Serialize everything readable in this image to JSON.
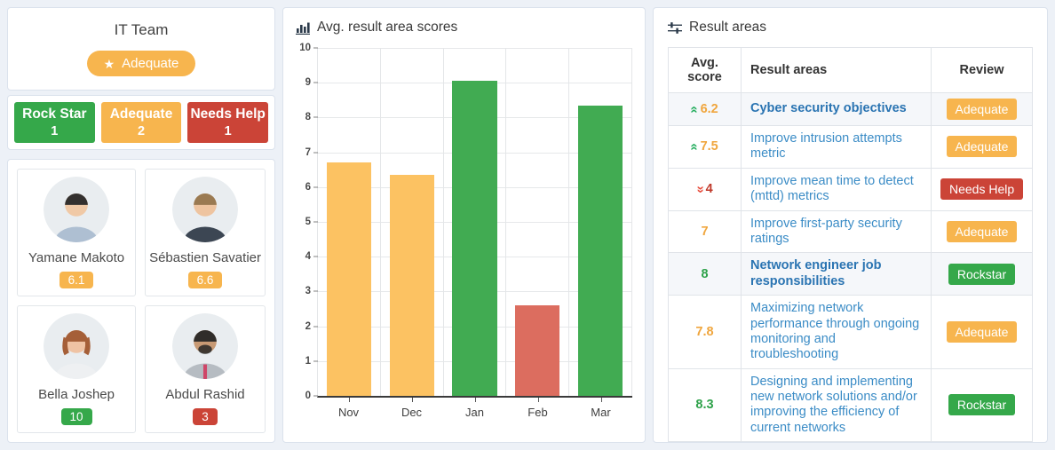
{
  "palette": {
    "orange": "#f7b54e",
    "green": "#35a84a",
    "red": "#cb4437",
    "score_orange": "#f0a63e",
    "score_green": "#2ea24a",
    "score_red": "#bf3a2b",
    "trend_up": "#27ae60",
    "trend_down": "#e74c3c",
    "link_blue": "#3b8cc6",
    "link_blue_bold": "#2a74b2"
  },
  "team_panel": {
    "title": "IT Team",
    "overall_badge": {
      "label": "Adequate",
      "icon": "star-icon",
      "color": "orange"
    },
    "summary_boxes": [
      {
        "label": "Rock Star",
        "count": "1",
        "color": "green"
      },
      {
        "label": "Adequate",
        "count": "2",
        "color": "orange"
      },
      {
        "label": "Needs Help",
        "count": "1",
        "color": "red"
      }
    ],
    "members": [
      {
        "name": "Yamane Makoto",
        "score": "6.1",
        "color": "orange",
        "avatar": "avatar-photo"
      },
      {
        "name": "Sébastien Savatier",
        "score": "6.6",
        "color": "orange",
        "avatar": "avatar-photo"
      },
      {
        "name": "Bella Joshep",
        "score": "10",
        "color": "green",
        "avatar": "avatar-photo"
      },
      {
        "name": "Abdul Rashid",
        "score": "3",
        "color": "red",
        "avatar": "avatar-photo"
      }
    ]
  },
  "chart_panel": {
    "title": "Avg. result area scores",
    "icon": "bar-chart-icon"
  },
  "chart_data": {
    "type": "bar",
    "title": "Avg. result area scores",
    "categories": [
      "Nov",
      "Dec",
      "Jan",
      "Feb",
      "Mar"
    ],
    "values": [
      6.7,
      6.35,
      9.05,
      2.6,
      8.35
    ],
    "bar_colors": [
      "#fcc262",
      "#fcc262",
      "#41ab52",
      "#dc6d5f",
      "#41ab52"
    ],
    "xlabel": "",
    "ylabel": "",
    "ylim": [
      0,
      10
    ],
    "yticks": [
      0,
      1,
      2,
      3,
      4,
      5,
      6,
      7,
      8,
      9,
      10
    ],
    "grid": true,
    "legend": false
  },
  "result_panel": {
    "title": "Result areas",
    "icon": "sliders-icon",
    "table": {
      "headers": [
        "Avg. score",
        "Result areas",
        "Review"
      ],
      "rows": [
        {
          "score": "6.2",
          "trend": "up",
          "score_color": "orange",
          "area": "Cyber security objectives",
          "bold": true,
          "review": "Adequate",
          "review_color": "orange"
        },
        {
          "score": "7.5",
          "trend": "up",
          "score_color": "orange",
          "area": "Improve intrusion attempts metric",
          "bold": false,
          "review": "Adequate",
          "review_color": "orange"
        },
        {
          "score": "4",
          "trend": "down",
          "score_color": "red",
          "area": "Improve mean time to detect (mttd) metrics",
          "bold": false,
          "review": "Needs Help",
          "review_color": "red"
        },
        {
          "score": "7",
          "trend": "none",
          "score_color": "orange",
          "area": "Improve first-party security ratings",
          "bold": false,
          "review": "Adequate",
          "review_color": "orange"
        },
        {
          "score": "8",
          "trend": "none",
          "score_color": "green",
          "area": "Network engineer job responsibilities",
          "bold": true,
          "review": "Rockstar",
          "review_color": "green"
        },
        {
          "score": "7.8",
          "trend": "none",
          "score_color": "orange",
          "area": "Maximizing network performance through ongoing monitoring and troubleshooting",
          "bold": false,
          "review": "Adequate",
          "review_color": "orange"
        },
        {
          "score": "8.3",
          "trend": "none",
          "score_color": "green",
          "area": "Designing and implementing new network solutions and/or improving the efficiency of current networks",
          "bold": false,
          "review": "Rockstar",
          "review_color": "green"
        }
      ]
    }
  }
}
